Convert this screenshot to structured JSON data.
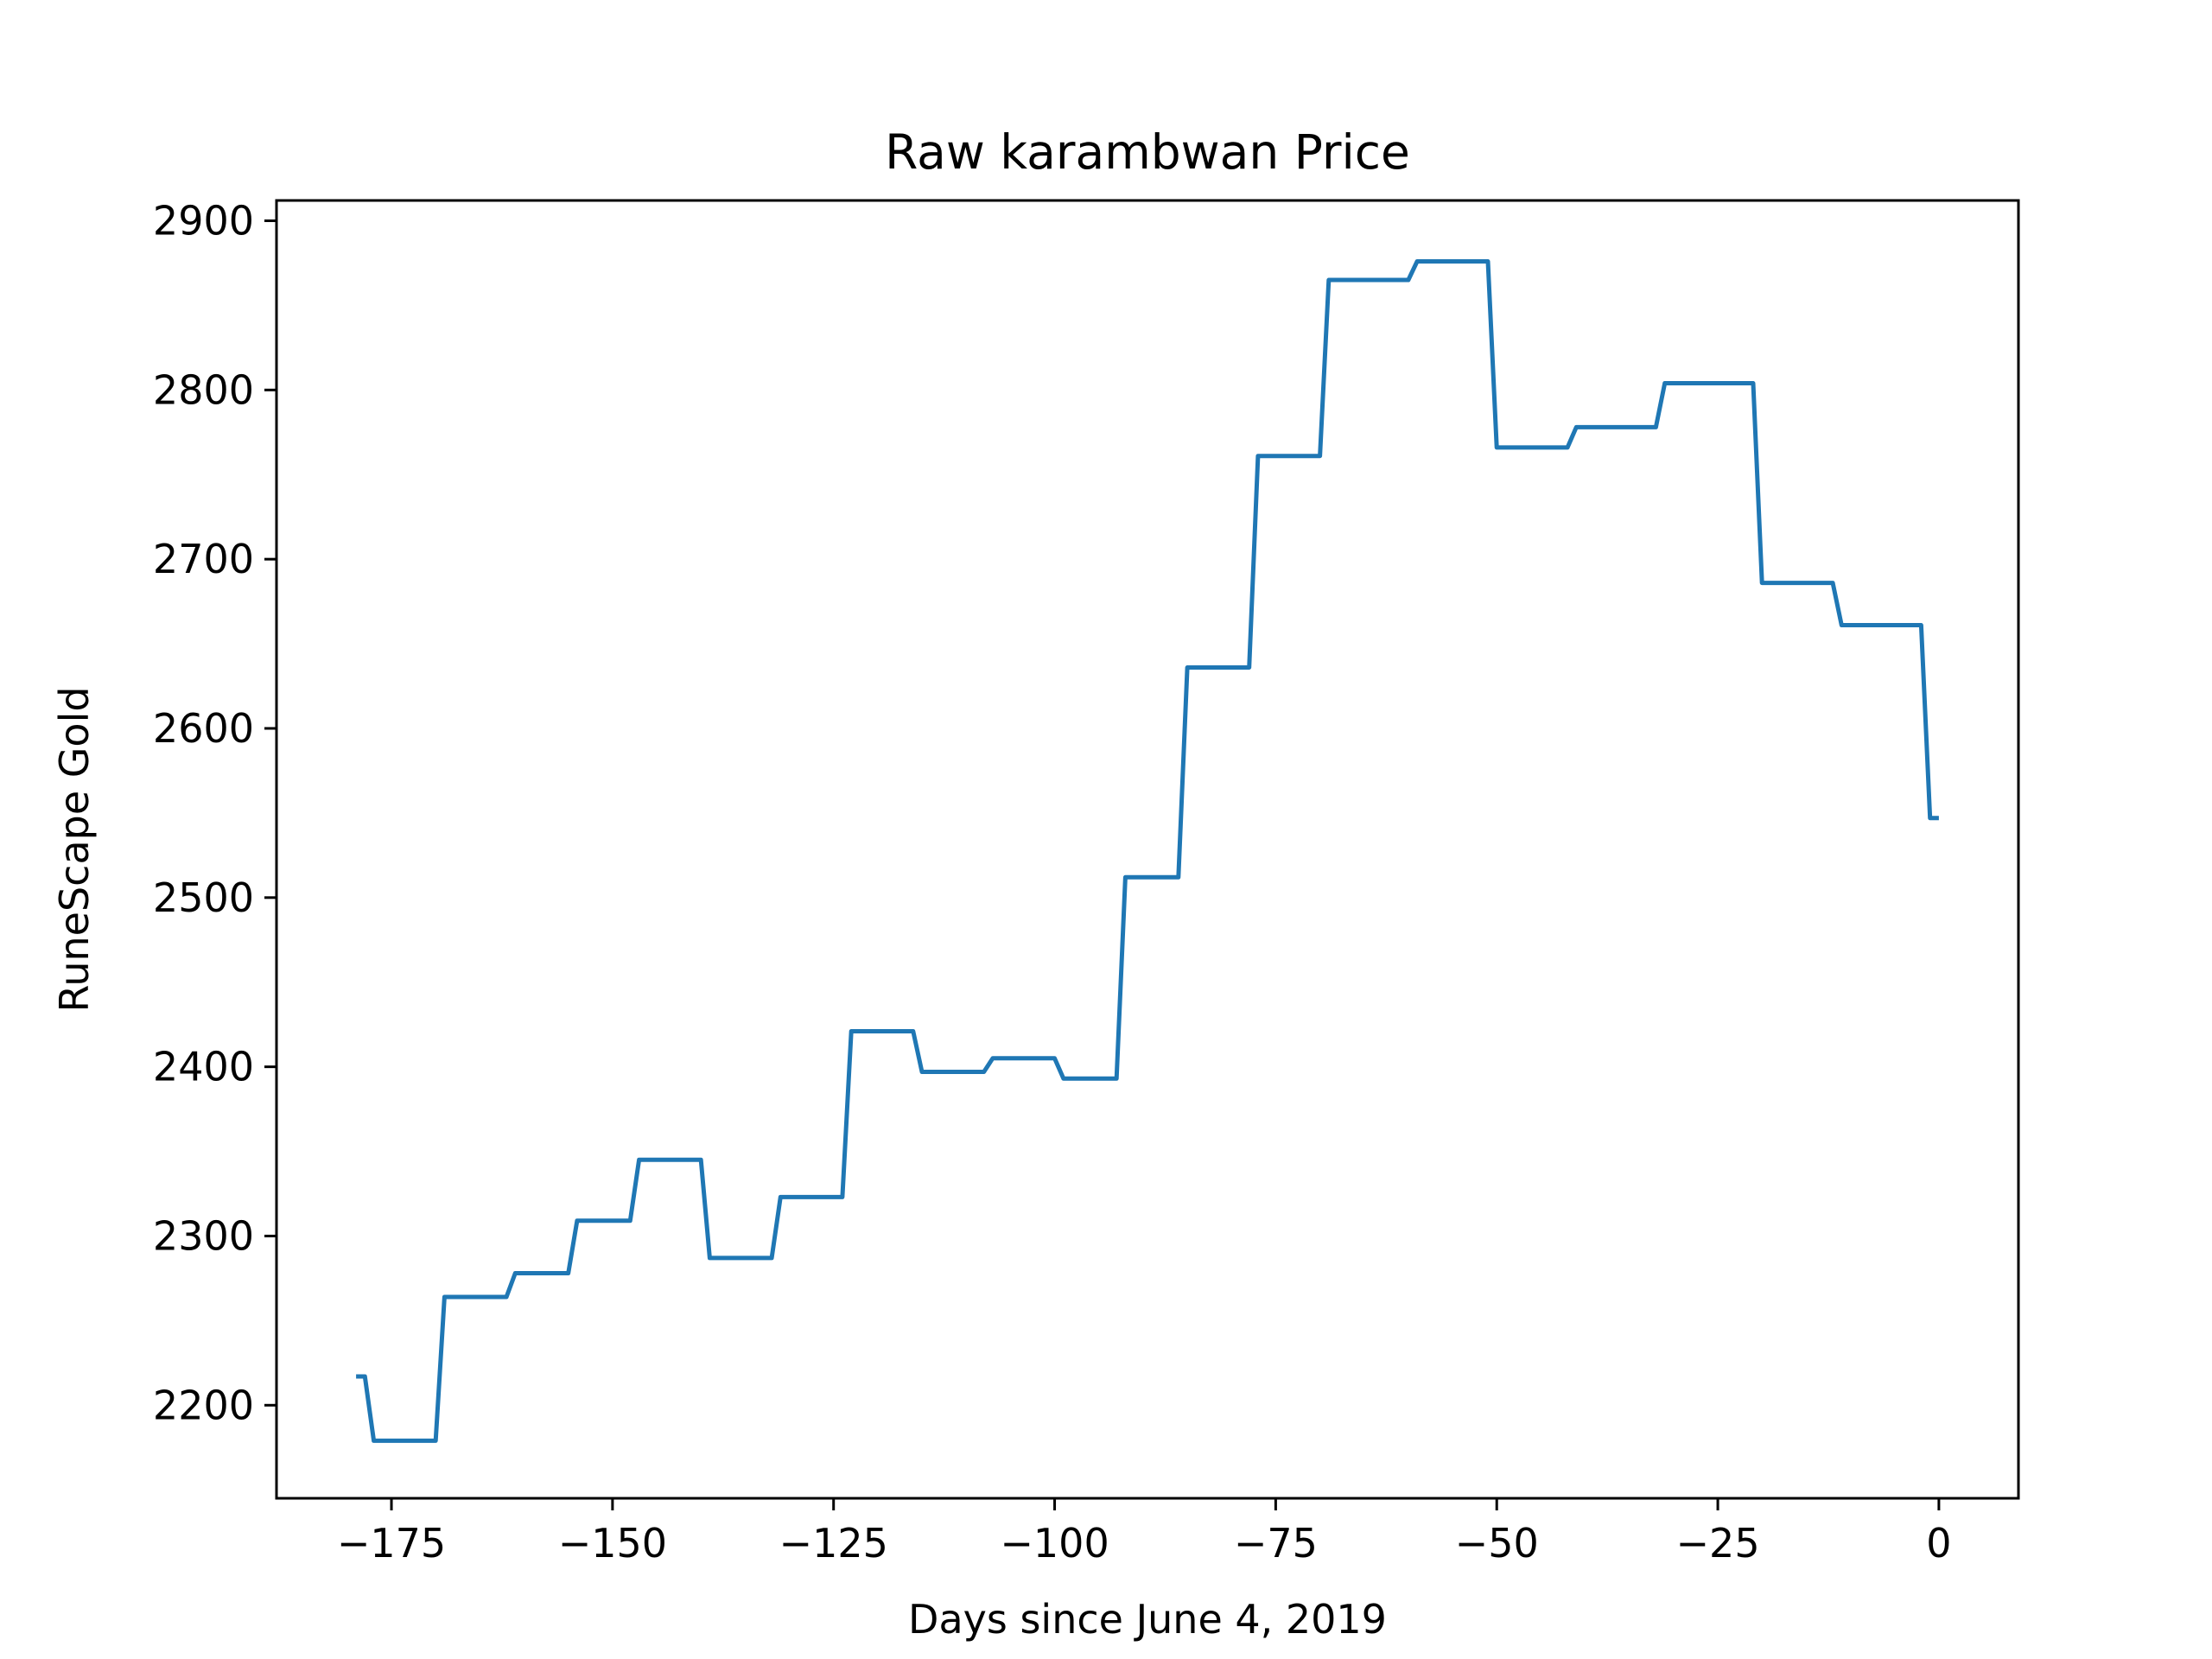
{
  "chart_data": {
    "type": "line",
    "title": "Raw karambwan Price",
    "xlabel": "Days since June 4, 2019",
    "ylabel": "RuneScape Gold",
    "xlim": [
      -188,
      9
    ],
    "ylim": [
      2145,
      2912
    ],
    "x_ticks": [
      -175,
      -150,
      -125,
      -100,
      -75,
      -50,
      -25,
      0
    ],
    "x_tick_labels": [
      "−175",
      "−150",
      "−125",
      "−100",
      "−75",
      "−50",
      "−25",
      "0"
    ],
    "y_ticks": [
      2200,
      2300,
      2400,
      2500,
      2600,
      2700,
      2800,
      2900
    ],
    "y_tick_labels": [
      "2200",
      "2300",
      "2400",
      "2500",
      "2600",
      "2700",
      "2800",
      "2900"
    ],
    "grid": false,
    "series": [
      {
        "color": "#1f77b4",
        "points": [
          [
            -179,
            2217
          ],
          [
            -178,
            2217
          ],
          [
            -177,
            2179
          ],
          [
            -176,
            2179
          ],
          [
            -175,
            2179
          ],
          [
            -174,
            2179
          ],
          [
            -173,
            2179
          ],
          [
            -172,
            2179
          ],
          [
            -171,
            2179
          ],
          [
            -170,
            2179
          ],
          [
            -169,
            2264
          ],
          [
            -168,
            2264
          ],
          [
            -167,
            2264
          ],
          [
            -166,
            2264
          ],
          [
            -165,
            2264
          ],
          [
            -164,
            2264
          ],
          [
            -163,
            2264
          ],
          [
            -162,
            2264
          ],
          [
            -161,
            2278
          ],
          [
            -160,
            2278
          ],
          [
            -159,
            2278
          ],
          [
            -158,
            2278
          ],
          [
            -157,
            2278
          ],
          [
            -156,
            2278
          ],
          [
            -155,
            2278
          ],
          [
            -154,
            2309
          ],
          [
            -153,
            2309
          ],
          [
            -152,
            2309
          ],
          [
            -151,
            2309
          ],
          [
            -150,
            2309
          ],
          [
            -149,
            2309
          ],
          [
            -148,
            2309
          ],
          [
            -147,
            2345
          ],
          [
            -146,
            2345
          ],
          [
            -145,
            2345
          ],
          [
            -144,
            2345
          ],
          [
            -143,
            2345
          ],
          [
            -142,
            2345
          ],
          [
            -141,
            2345
          ],
          [
            -140,
            2345
          ],
          [
            -139,
            2287
          ],
          [
            -138,
            2287
          ],
          [
            -137,
            2287
          ],
          [
            -136,
            2287
          ],
          [
            -135,
            2287
          ],
          [
            -134,
            2287
          ],
          [
            -133,
            2287
          ],
          [
            -132,
            2287
          ],
          [
            -131,
            2323
          ],
          [
            -130,
            2323
          ],
          [
            -129,
            2323
          ],
          [
            -128,
            2323
          ],
          [
            -127,
            2323
          ],
          [
            -126,
            2323
          ],
          [
            -125,
            2323
          ],
          [
            -124,
            2323
          ],
          [
            -123,
            2421
          ],
          [
            -122,
            2421
          ],
          [
            -121,
            2421
          ],
          [
            -120,
            2421
          ],
          [
            -119,
            2421
          ],
          [
            -118,
            2421
          ],
          [
            -117,
            2421
          ],
          [
            -116,
            2421
          ],
          [
            -115,
            2397
          ],
          [
            -114,
            2397
          ],
          [
            -113,
            2397
          ],
          [
            -112,
            2397
          ],
          [
            -111,
            2397
          ],
          [
            -110,
            2397
          ],
          [
            -109,
            2397
          ],
          [
            -108,
            2397
          ],
          [
            -107,
            2405
          ],
          [
            -106,
            2405
          ],
          [
            -105,
            2405
          ],
          [
            -104,
            2405
          ],
          [
            -103,
            2405
          ],
          [
            -102,
            2405
          ],
          [
            -101,
            2405
          ],
          [
            -100,
            2405
          ],
          [
            -99,
            2393
          ],
          [
            -98,
            2393
          ],
          [
            -97,
            2393
          ],
          [
            -96,
            2393
          ],
          [
            -95,
            2393
          ],
          [
            -94,
            2393
          ],
          [
            -93,
            2393
          ],
          [
            -92,
            2512
          ],
          [
            -91,
            2512
          ],
          [
            -90,
            2512
          ],
          [
            -89,
            2512
          ],
          [
            -88,
            2512
          ],
          [
            -87,
            2512
          ],
          [
            -86,
            2512
          ],
          [
            -85,
            2636
          ],
          [
            -84,
            2636
          ],
          [
            -83,
            2636
          ],
          [
            -82,
            2636
          ],
          [
            -81,
            2636
          ],
          [
            -80,
            2636
          ],
          [
            -79,
            2636
          ],
          [
            -78,
            2636
          ],
          [
            -77,
            2761
          ],
          [
            -76,
            2761
          ],
          [
            -75,
            2761
          ],
          [
            -74,
            2761
          ],
          [
            -73,
            2761
          ],
          [
            -72,
            2761
          ],
          [
            -71,
            2761
          ],
          [
            -70,
            2761
          ],
          [
            -69,
            2865
          ],
          [
            -68,
            2865
          ],
          [
            -67,
            2865
          ],
          [
            -66,
            2865
          ],
          [
            -65,
            2865
          ],
          [
            -64,
            2865
          ],
          [
            -63,
            2865
          ],
          [
            -62,
            2865
          ],
          [
            -61,
            2865
          ],
          [
            -60,
            2865
          ],
          [
            -59,
            2876
          ],
          [
            -58,
            2876
          ],
          [
            -57,
            2876
          ],
          [
            -56,
            2876
          ],
          [
            -55,
            2876
          ],
          [
            -54,
            2876
          ],
          [
            -53,
            2876
          ],
          [
            -52,
            2876
          ],
          [
            -51,
            2876
          ],
          [
            -50,
            2766
          ],
          [
            -49,
            2766
          ],
          [
            -48,
            2766
          ],
          [
            -47,
            2766
          ],
          [
            -46,
            2766
          ],
          [
            -45,
            2766
          ],
          [
            -44,
            2766
          ],
          [
            -43,
            2766
          ],
          [
            -42,
            2766
          ],
          [
            -41,
            2778
          ],
          [
            -40,
            2778
          ],
          [
            -39,
            2778
          ],
          [
            -38,
            2778
          ],
          [
            -37,
            2778
          ],
          [
            -36,
            2778
          ],
          [
            -35,
            2778
          ],
          [
            -34,
            2778
          ],
          [
            -33,
            2778
          ],
          [
            -32,
            2778
          ],
          [
            -31,
            2804
          ],
          [
            -30,
            2804
          ],
          [
            -29,
            2804
          ],
          [
            -28,
            2804
          ],
          [
            -27,
            2804
          ],
          [
            -26,
            2804
          ],
          [
            -25,
            2804
          ],
          [
            -24,
            2804
          ],
          [
            -23,
            2804
          ],
          [
            -22,
            2804
          ],
          [
            -21,
            2804
          ],
          [
            -20,
            2686
          ],
          [
            -19,
            2686
          ],
          [
            -18,
            2686
          ],
          [
            -17,
            2686
          ],
          [
            -16,
            2686
          ],
          [
            -15,
            2686
          ],
          [
            -14,
            2686
          ],
          [
            -13,
            2686
          ],
          [
            -12,
            2686
          ],
          [
            -11,
            2661
          ],
          [
            -10,
            2661
          ],
          [
            -9,
            2661
          ],
          [
            -8,
            2661
          ],
          [
            -7,
            2661
          ],
          [
            -6,
            2661
          ],
          [
            -5,
            2661
          ],
          [
            -4,
            2661
          ],
          [
            -3,
            2661
          ],
          [
            -2,
            2661
          ],
          [
            -1,
            2547
          ],
          [
            0,
            2547
          ]
        ]
      }
    ]
  }
}
